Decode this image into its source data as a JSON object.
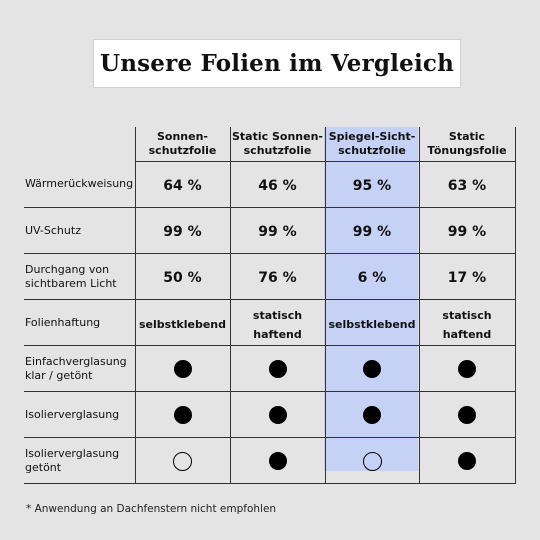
{
  "title": "Unsere Folien im Vergleich",
  "columns": [
    {
      "line1": "Sonnen-",
      "line2": "schutzfolie",
      "highlighted": false
    },
    {
      "line1": "Static Sonnen-",
      "line2": "schutzfolie",
      "highlighted": false
    },
    {
      "line1": "Spiegel-Sicht-",
      "line2": "schutzfolie",
      "highlighted": true
    },
    {
      "line1": "Static",
      "line2": "Tönungsfolie",
      "highlighted": false
    }
  ],
  "highlight_color": "#c6d2f5",
  "rows": [
    {
      "label1": "Wärmerückweisung",
      "label2": "",
      "type": "percent",
      "values": [
        "64 %",
        "46 %",
        "95 %",
        "63 %"
      ]
    },
    {
      "label1": "UV-Schutz",
      "label2": "",
      "type": "percent",
      "values": [
        "99 %",
        "99 %",
        "99 %",
        "99 %"
      ]
    },
    {
      "label1": "Durchgang von",
      "label2": "sichtbarem Licht",
      "type": "percent",
      "values": [
        "50 %",
        "76 %",
        "6 %",
        "17 %"
      ]
    },
    {
      "label1": "Folienhaftung",
      "label2": "",
      "type": "text",
      "values": [
        "selbstklebend",
        "statisch haftend",
        "selbstklebend",
        "statisch haftend"
      ]
    },
    {
      "label1": "Einfachverglasung",
      "label2": "klar / getönt",
      "type": "dots",
      "values": [
        "filled",
        "filled",
        "filled",
        "filled"
      ]
    },
    {
      "label1": "Isolierverglasung",
      "label2": "",
      "type": "dots",
      "values": [
        "filled",
        "filled",
        "filled",
        "filled"
      ]
    },
    {
      "label1": "Isolierverglasung",
      "label2": "getönt",
      "type": "dots",
      "values": [
        "empty",
        "filled",
        "empty",
        "filled"
      ]
    }
  ],
  "footnote": "* Anwendung an Dachfenstern nicht empfohlen"
}
